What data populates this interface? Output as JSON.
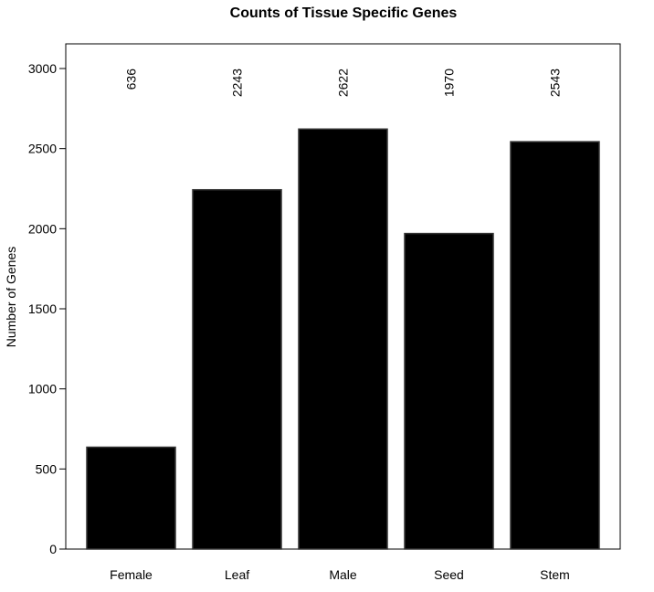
{
  "chart_data": {
    "type": "bar",
    "title": "Counts of Tissue Specific Genes",
    "xlabel": "",
    "ylabel": "Number of Genes",
    "categories": [
      "Female",
      "Leaf",
      "Male",
      "Seed",
      "Stem"
    ],
    "values": [
      636,
      2243,
      2622,
      1970,
      2543
    ],
    "data_labels": [
      "636",
      "2243",
      "2622",
      "1970",
      "2543"
    ],
    "ylim": [
      0,
      3000
    ],
    "yticks": [
      0,
      500,
      1000,
      1500,
      2000,
      2500,
      3000
    ],
    "bar_color": "#000000",
    "grid": false,
    "legend": "none"
  }
}
